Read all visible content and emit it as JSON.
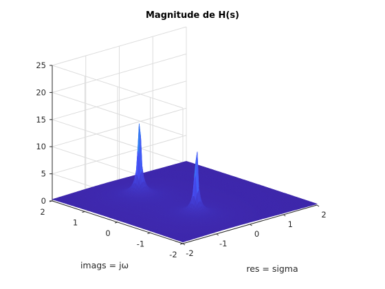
{
  "chart_data": {
    "type": "surface",
    "title": "Magnitude de H(s)",
    "xlabel": "res = sigma",
    "ylabel": "imags = jω",
    "zlabel": "",
    "xlim": [
      -2,
      2
    ],
    "ylim": [
      -2,
      2
    ],
    "zlim": [
      0,
      25
    ],
    "xticks": [
      "-2",
      "-1",
      "0",
      "1",
      "2"
    ],
    "yticks": [
      "-2",
      "-1",
      "0",
      "1",
      "2"
    ],
    "zticks": [
      "0",
      "5",
      "10",
      "15",
      "20",
      "25"
    ],
    "grid": true,
    "colormap": [
      "#3e26a8",
      "#4650f7",
      "#2d94ef",
      "#17bab9",
      "#3bd493"
    ],
    "peaks": [
      {
        "sigma": -0.5,
        "omega": 0.87,
        "magnitude": 24
      },
      {
        "sigma": -0.5,
        "omega": -0.87,
        "magnitude": 21
      }
    ]
  }
}
